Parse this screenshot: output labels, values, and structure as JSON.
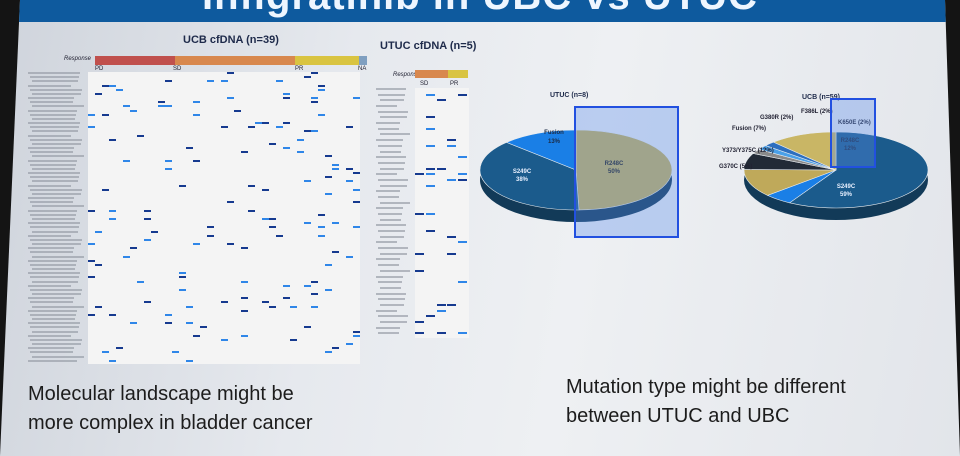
{
  "slide": {
    "title": "Infigratinib in UBC vs UTUC",
    "left_caption": [
      "Molecular landscape might be",
      "more complex in bladder cancer"
    ],
    "right_caption": [
      "Mutation type might be different",
      "between UTUC and UBC"
    ]
  },
  "ucb_heatmap": {
    "title": "UCB cfDNA (n=39)",
    "response_label": "Response",
    "groups": [
      "PD",
      "SD",
      "PR",
      "NA"
    ],
    "group_colors": [
      "#c0504d",
      "#d8884e",
      "#d9c441",
      "#7f9fc0"
    ]
  },
  "utuc_heatmap": {
    "title": "UTUC cfDNA (n=5)",
    "response_label": "Response",
    "groups": [
      "SD",
      "PR"
    ],
    "group_colors": [
      "#d8884e",
      "#d9c441"
    ]
  },
  "utuc_pie": {
    "title": "UTUC (n=8)",
    "slices": [
      {
        "label": "R248C",
        "pct": "50%",
        "value": 50,
        "color": "#c6b15a"
      },
      {
        "label": "S249C",
        "pct": "38%",
        "value": 38,
        "color": "#1b5b8c"
      },
      {
        "label": "Fusion",
        "pct": "13%",
        "value": 13,
        "color": "#1a7fe6"
      }
    ]
  },
  "ucb_pie": {
    "title": "UCB (n=59)",
    "slices": [
      {
        "label": "S249C",
        "pct": "59%",
        "value": 59,
        "color": "#1b5b8c"
      },
      {
        "label": "G370C",
        "pct": "5%",
        "value": 5,
        "color": "#1a7fe6"
      },
      {
        "label": "Y373/Y375C",
        "pct": "12%",
        "value": 12,
        "color": "#bfa95a"
      },
      {
        "label": "Fusion",
        "pct": "7%",
        "value": 7,
        "color": "#222a36"
      },
      {
        "label": "G380R",
        "pct": "2%",
        "value": 2,
        "color": "#8a8a8a"
      },
      {
        "label": "F386L",
        "pct": "2%",
        "value": 2,
        "color": "#4aa0e8"
      },
      {
        "label": "K650E",
        "pct": "2%",
        "value": 2,
        "color": "#2d6fbf"
      },
      {
        "label": "R248C",
        "pct": "12%",
        "value": 12,
        "color": "#c9b665"
      }
    ]
  }
}
